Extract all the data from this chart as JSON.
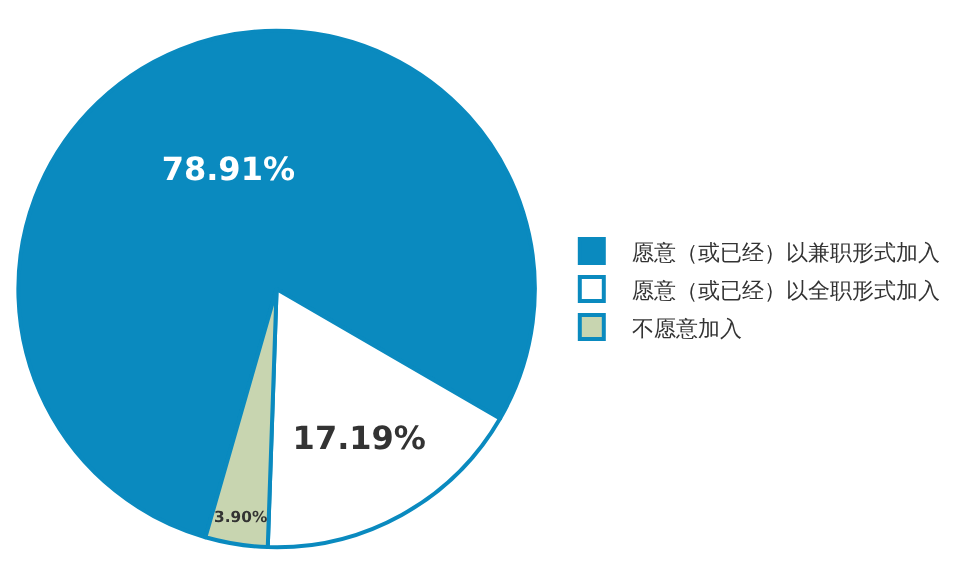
{
  "chart_data": {
    "type": "pie",
    "categories": [
      "愿意（或已经）以兼职形式加入",
      "愿意（或已经）以全职形式加入",
      "不愿意加入"
    ],
    "values": [
      78.91,
      17.19,
      3.9
    ],
    "colors": [
      "#0a8abf",
      "#ffffff",
      "#c8d5b0"
    ],
    "value_labels": [
      "78.91%",
      "17.19%",
      "3.90%"
    ],
    "legend": "right"
  }
}
